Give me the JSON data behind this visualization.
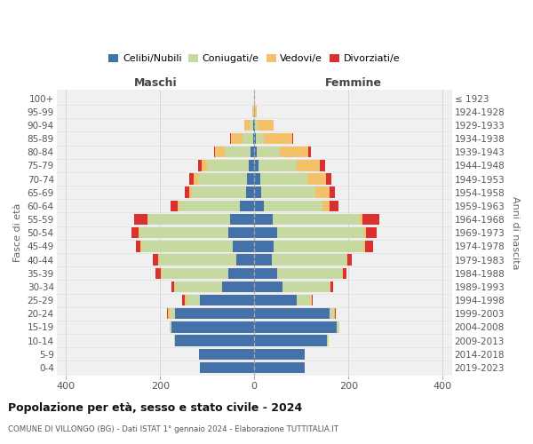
{
  "age_groups": [
    "0-4",
    "5-9",
    "10-14",
    "15-19",
    "20-24",
    "25-29",
    "30-34",
    "35-39",
    "40-44",
    "45-49",
    "50-54",
    "55-59",
    "60-64",
    "65-69",
    "70-74",
    "75-79",
    "80-84",
    "85-89",
    "90-94",
    "95-99",
    "100+"
  ],
  "birth_years": [
    "2019-2023",
    "2014-2018",
    "2009-2013",
    "2004-2008",
    "1999-2003",
    "1994-1998",
    "1989-1993",
    "1984-1988",
    "1979-1983",
    "1974-1978",
    "1969-1973",
    "1964-1968",
    "1959-1963",
    "1954-1958",
    "1949-1953",
    "1944-1948",
    "1939-1943",
    "1934-1938",
    "1929-1933",
    "1924-1928",
    "≤ 1923"
  ],
  "male_celibi": [
    115,
    118,
    168,
    175,
    168,
    115,
    68,
    55,
    38,
    45,
    55,
    52,
    30,
    18,
    15,
    12,
    8,
    3,
    2,
    1,
    0
  ],
  "male_coniugati": [
    0,
    0,
    3,
    5,
    12,
    28,
    100,
    142,
    165,
    195,
    188,
    172,
    128,
    115,
    105,
    88,
    55,
    22,
    8,
    2,
    0
  ],
  "male_vedovi": [
    0,
    0,
    0,
    0,
    3,
    5,
    2,
    2,
    2,
    2,
    2,
    2,
    5,
    5,
    8,
    12,
    20,
    25,
    12,
    2,
    0
  ],
  "male_divorziati": [
    0,
    0,
    0,
    0,
    2,
    5,
    5,
    10,
    10,
    10,
    15,
    30,
    15,
    10,
    10,
    8,
    2,
    2,
    0,
    0,
    0
  ],
  "female_nubili": [
    108,
    108,
    155,
    175,
    160,
    90,
    60,
    48,
    38,
    42,
    48,
    40,
    20,
    15,
    12,
    10,
    5,
    3,
    2,
    0,
    0
  ],
  "female_coniugate": [
    0,
    0,
    3,
    5,
    10,
    30,
    100,
    138,
    158,
    190,
    185,
    185,
    125,
    115,
    100,
    80,
    50,
    18,
    5,
    0,
    0
  ],
  "female_vedove": [
    0,
    0,
    0,
    0,
    2,
    2,
    2,
    2,
    2,
    3,
    5,
    5,
    15,
    30,
    40,
    50,
    60,
    60,
    35,
    5,
    2
  ],
  "female_divorziate": [
    0,
    0,
    0,
    0,
    2,
    2,
    5,
    8,
    10,
    18,
    22,
    35,
    18,
    12,
    12,
    10,
    5,
    2,
    0,
    0,
    0
  ],
  "color_celibi": "#4472a8",
  "color_coniugati": "#c5d9a0",
  "color_vedovi": "#f5c06a",
  "color_divorziati": "#d93030",
  "xlim": 420,
  "grid_color": "#cccccc",
  "bg_color": "#f0f0f0",
  "fig_bg": "#ffffff",
  "title": "Popolazione per età, sesso e stato civile - 2024",
  "subtitle": "COMUNE DI VILLONGO (BG) - Dati ISTAT 1° gennaio 2024 - Elaborazione TUTTITALIA.IT",
  "ylabel_left": "Fasce di età",
  "ylabel_right": "Anni di nascita",
  "label_maschi": "Maschi",
  "label_femmine": "Femmine",
  "legend_labels": [
    "Celibi/Nubili",
    "Coniugati/e",
    "Vedovi/e",
    "Divorziati/e"
  ]
}
